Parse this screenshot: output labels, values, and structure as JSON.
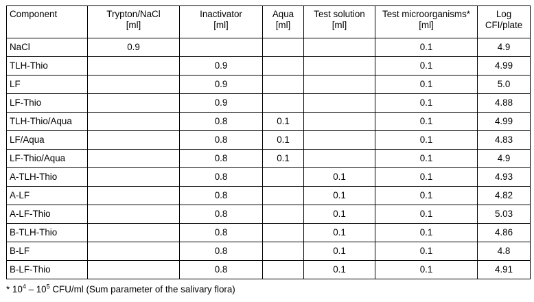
{
  "table": {
    "headers": [
      {
        "line1": "Component",
        "line2": ""
      },
      {
        "line1": "Trypton/NaCl",
        "line2": "[ml]"
      },
      {
        "line1": "Inactivator",
        "line2": "[ml]"
      },
      {
        "line1": "Aqua",
        "line2": "[ml]"
      },
      {
        "line1": "Test solution",
        "line2": "[ml]"
      },
      {
        "line1": "Test microorganisms*",
        "line2": "[ml]"
      },
      {
        "line1": "Log",
        "line2": "CFI/plate"
      }
    ],
    "rows": [
      [
        "NaCl",
        "0.9",
        "",
        "",
        "",
        "0.1",
        "4.9"
      ],
      [
        "TLH-Thio",
        "",
        "0.9",
        "",
        "",
        "0.1",
        "4.99"
      ],
      [
        "LF",
        "",
        "0.9",
        "",
        "",
        "0.1",
        "5.0"
      ],
      [
        "LF-Thio",
        "",
        "0.9",
        "",
        "",
        "0.1",
        "4.88"
      ],
      [
        "TLH-Thio/Aqua",
        "",
        "0.8",
        "0.1",
        "",
        "0.1",
        "4.99"
      ],
      [
        "LF/Aqua",
        "",
        "0.8",
        "0.1",
        "",
        "0.1",
        "4.83"
      ],
      [
        "LF-Thio/Aqua",
        "",
        "0.8",
        "0.1",
        "",
        "0.1",
        "4.9"
      ],
      [
        "A-TLH-Thio",
        "",
        "0.8",
        "",
        "0.1",
        "0.1",
        "4.93"
      ],
      [
        "A-LF",
        "",
        "0.8",
        "",
        "0.1",
        "0.1",
        "4.82"
      ],
      [
        "A-LF-Thio",
        "",
        "0.8",
        "",
        "0.1",
        "0.1",
        "5.03"
      ],
      [
        "B-TLH-Thio",
        "",
        "0.8",
        "",
        "0.1",
        "0.1",
        "4.86"
      ],
      [
        "B-LF",
        "",
        "0.8",
        "",
        "0.1",
        "0.1",
        "4.8"
      ],
      [
        "B-LF-Thio",
        "",
        "0.8",
        "",
        "0.1",
        "0.1",
        "4.91"
      ]
    ]
  },
  "footnote": {
    "prefix": "* 10",
    "exp1": "4",
    "mid": " – 10",
    "exp2": "5",
    "suffix": " CFU/ml (Sum parameter of the salivary flora)"
  }
}
